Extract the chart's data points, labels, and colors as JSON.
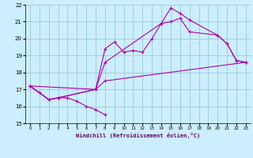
{
  "xlabel": "Windchill (Refroidissement éolien,°C)",
  "bg_color": "#cceeff",
  "grid_color": "#99cccc",
  "line_color": "#aa00aa",
  "xlim": [
    -0.5,
    23.5
  ],
  "ylim": [
    15,
    22
  ],
  "xticks": [
    0,
    1,
    2,
    3,
    4,
    5,
    6,
    7,
    8,
    9,
    10,
    11,
    12,
    13,
    14,
    15,
    16,
    17,
    18,
    19,
    20,
    21,
    22,
    23
  ],
  "yticks": [
    15,
    16,
    17,
    18,
    19,
    20,
    21,
    22
  ],
  "series": [
    {
      "x": [
        0,
        1,
        2,
        3,
        4,
        5,
        6,
        7,
        8
      ],
      "y": [
        17.2,
        16.8,
        16.4,
        16.5,
        16.5,
        16.3,
        16.0,
        15.8,
        15.5
      ]
    },
    {
      "x": [
        0,
        2,
        3,
        7,
        8,
        9,
        10,
        11,
        12,
        13,
        14,
        15,
        16,
        17,
        20,
        21,
        22,
        23
      ],
      "y": [
        17.2,
        16.4,
        16.5,
        17.0,
        19.4,
        19.8,
        19.2,
        19.3,
        19.2,
        20.0,
        20.9,
        21.0,
        21.2,
        20.4,
        20.2,
        19.7,
        18.7,
        18.6
      ]
    },
    {
      "x": [
        0,
        2,
        3,
        7,
        8,
        14,
        15,
        16,
        17,
        20,
        21,
        22,
        23
      ],
      "y": [
        17.2,
        16.4,
        16.5,
        17.0,
        18.6,
        20.9,
        21.8,
        21.5,
        21.1,
        20.2,
        19.7,
        18.7,
        18.6
      ]
    },
    {
      "x": [
        0,
        7,
        8,
        23
      ],
      "y": [
        17.2,
        17.0,
        17.5,
        18.6
      ]
    }
  ]
}
